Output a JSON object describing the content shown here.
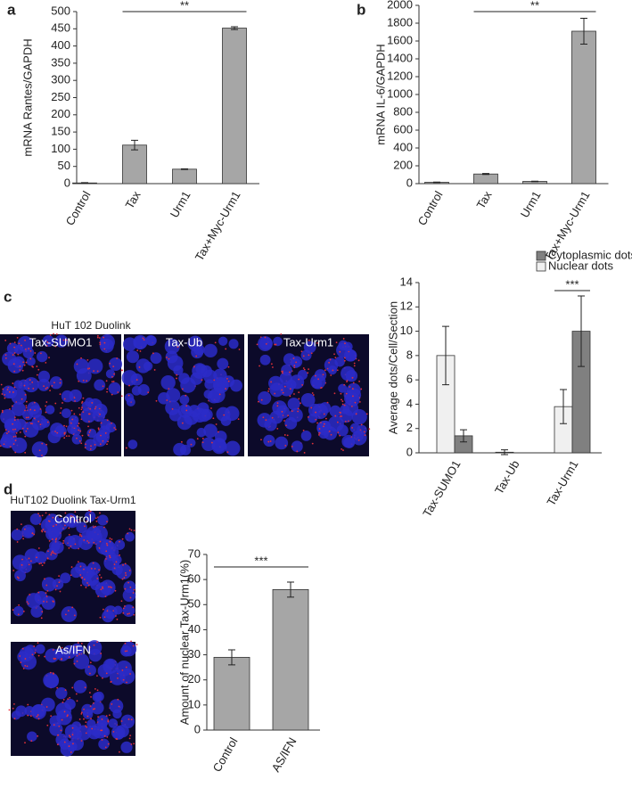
{
  "chart_data": [
    {
      "type": "bar",
      "panel": "a",
      "ylabel": "mRNA Rantes/GAPDH",
      "categories": [
        "Control",
        "Tax",
        "Urm1",
        "Tax+Myc-Urm1"
      ],
      "values": [
        2,
        112,
        42,
        452
      ],
      "errors": [
        1,
        14,
        1,
        4
      ],
      "color": "#a6a6a6",
      "ylim": [
        0,
        500
      ],
      "yticks": [
        0,
        50,
        100,
        150,
        200,
        250,
        300,
        350,
        400,
        450,
        500
      ],
      "significance": {
        "label": "**",
        "from": "Tax",
        "to": "Tax+Myc-Urm1"
      }
    },
    {
      "type": "bar",
      "panel": "b",
      "ylabel": "mRNA IL-6/GAPDH",
      "categories": [
        "Control",
        "Tax",
        "Urm1",
        "Tax+Myc-Urm1"
      ],
      "values": [
        15,
        108,
        25,
        1710
      ],
      "errors": [
        2,
        6,
        3,
        145
      ],
      "color": "#a6a6a6",
      "ylim": [
        0,
        2000
      ],
      "yticks": [
        0,
        200,
        400,
        600,
        800,
        1000,
        1200,
        1400,
        1600,
        1800,
        2000
      ],
      "significance": {
        "label": "**",
        "from": "Tax",
        "to": "Tax+Myc-Urm1"
      }
    },
    {
      "type": "bar",
      "panel": "c",
      "ylabel": "Average dots/Cell/Section",
      "categories": [
        "Tax-SUMO1",
        "Tax-Ub",
        "Tax-Urm1"
      ],
      "series": [
        {
          "name": "Nuclear dots",
          "color": "#f0f0f0",
          "values": [
            8,
            0.05,
            3.8
          ],
          "errors": [
            2.4,
            0.2,
            1.4
          ]
        },
        {
          "name": "Cytoplasmic dots",
          "color": "#808080",
          "values": [
            1.4,
            0,
            10
          ],
          "errors": [
            0.5,
            0,
            2.9
          ]
        }
      ],
      "ylim": [
        0,
        14
      ],
      "yticks": [
        0,
        2,
        4,
        6,
        8,
        10,
        12,
        14
      ],
      "significance": {
        "label": "***",
        "from": "Tax-Urm1",
        "to": "Tax-Urm1"
      }
    },
    {
      "type": "bar",
      "panel": "d",
      "ylabel": "Amount of nuclear Tax-Urm1(%)",
      "categories": [
        "Control",
        "AS/IFN"
      ],
      "values": [
        29,
        56
      ],
      "errors": [
        3,
        3
      ],
      "color": "#a6a6a6",
      "ylim": [
        0,
        70
      ],
      "yticks": [
        0,
        10,
        20,
        30,
        40,
        50,
        60,
        70
      ],
      "significance": {
        "label": "***",
        "from": "Control",
        "to": "AS/IFN"
      }
    }
  ],
  "micrographs": {
    "c": {
      "title": "HuT 102 Duolink",
      "images": [
        "Tax-SUMO1",
        "Tax-Ub",
        "Tax-Urm1"
      ]
    },
    "d": {
      "title": "HuT102 Duolink Tax-Urm1",
      "images": [
        "Control",
        "As/IFN"
      ]
    }
  }
}
